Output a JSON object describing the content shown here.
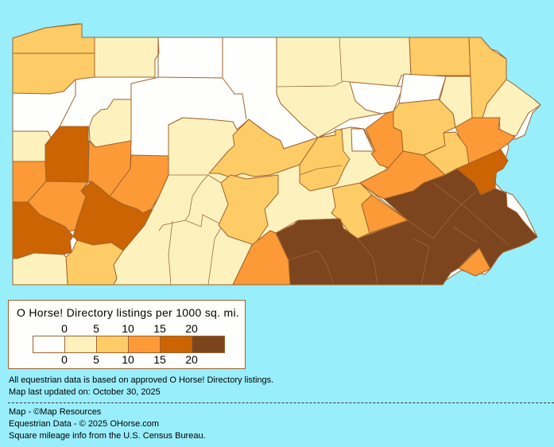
{
  "map": {
    "region": "Pennsylvania counties",
    "outline_color": "#A0632E",
    "background_color": "#99EEFB"
  },
  "legend": {
    "title": "O Horse! Directory listings per 1000 sq. mi.",
    "top_ticks": [
      "0",
      "5",
      "10",
      "15",
      "20"
    ],
    "bottom_ticks": [
      "0",
      "5",
      "10",
      "15",
      "20"
    ],
    "colors": [
      "#FEFEFC",
      "#FDF2BD",
      "#FDCC66",
      "#FB9A36",
      "#CC6403",
      "#7D451D"
    ]
  },
  "notes": {
    "line1": "All equestrian data is based on approved O Horse! Directory listings.",
    "line2": "Map last updated on: October 30, 2025"
  },
  "credits": {
    "map": "Map - ©Map Resources",
    "data": "Equestrian Data - © 2025 OHorse.com",
    "census": "Square mileage info from the U.S. Census Bureau."
  }
}
